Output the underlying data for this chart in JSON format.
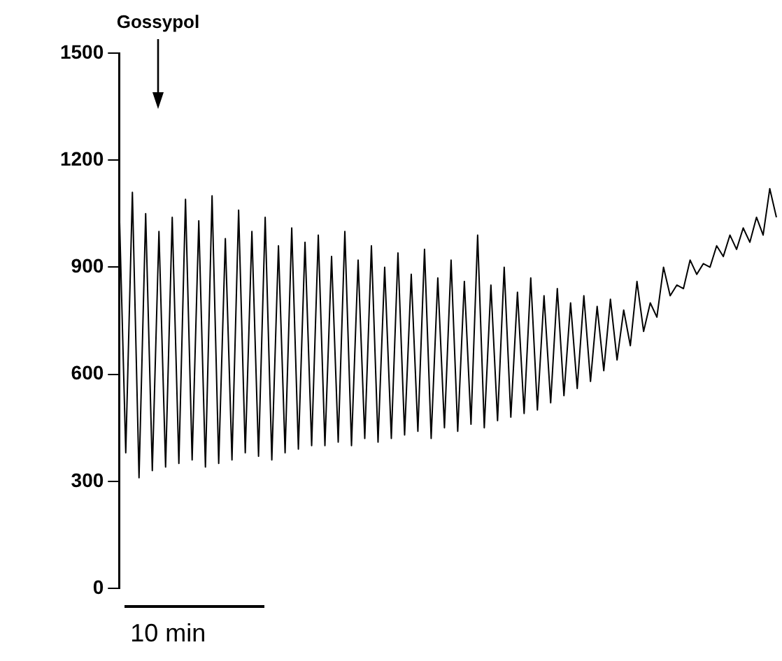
{
  "chart_data": {
    "type": "line",
    "color": "#000000",
    "marker": "none",
    "grid": false,
    "legend": false,
    "tick_labels": "y",
    "categories": [
      null,
      null,
      null,
      null,
      null,
      null,
      null,
      null,
      null,
      null,
      null,
      null,
      null,
      null,
      null,
      null,
      null,
      null,
      null,
      null,
      null,
      null,
      null,
      null,
      null,
      null,
      null,
      null,
      null,
      null,
      null,
      null,
      null,
      null,
      null,
      null,
      null,
      null,
      null,
      null,
      null,
      null,
      null,
      null,
      null,
      null,
      null,
      null,
      null,
      null,
      null,
      null,
      null,
      null,
      null,
      null,
      null,
      null,
      null,
      null,
      null,
      null,
      null,
      null,
      null,
      null,
      null,
      null,
      null,
      null,
      null,
      null,
      null,
      null,
      null,
      null,
      null,
      null,
      null,
      null,
      null,
      null,
      null,
      null,
      null,
      null,
      null,
      null,
      null,
      null,
      null,
      null,
      null,
      null,
      null,
      null,
      null,
      null,
      null,
      null
    ],
    "values": [
      1080,
      380,
      1110,
      310,
      1050,
      330,
      1000,
      340,
      1040,
      350,
      1090,
      360,
      1030,
      340,
      1100,
      350,
      980,
      360,
      1060,
      380,
      1000,
      370,
      1040,
      360,
      960,
      380,
      1010,
      390,
      970,
      400,
      990,
      400,
      930,
      410,
      1000,
      400,
      920,
      420,
      960,
      410,
      900,
      420,
      940,
      430,
      880,
      440,
      950,
      420,
      870,
      450,
      920,
      440,
      860,
      460,
      990,
      450,
      850,
      470,
      900,
      480,
      830,
      490,
      870,
      500,
      820,
      520,
      840,
      540,
      800,
      560,
      820,
      580,
      790,
      610,
      810,
      640,
      780,
      680,
      860,
      720,
      800,
      760,
      900,
      820,
      850,
      840,
      920,
      880,
      910,
      900,
      960,
      930,
      990,
      950,
      1010,
      970,
      1040,
      990,
      1120,
      1040
    ],
    "ylim": [
      0,
      1500
    ],
    "yticks": [
      0,
      300,
      600,
      900,
      1200,
      1500
    ],
    "annotations": [
      "Gossypol",
      "10 min"
    ]
  }
}
